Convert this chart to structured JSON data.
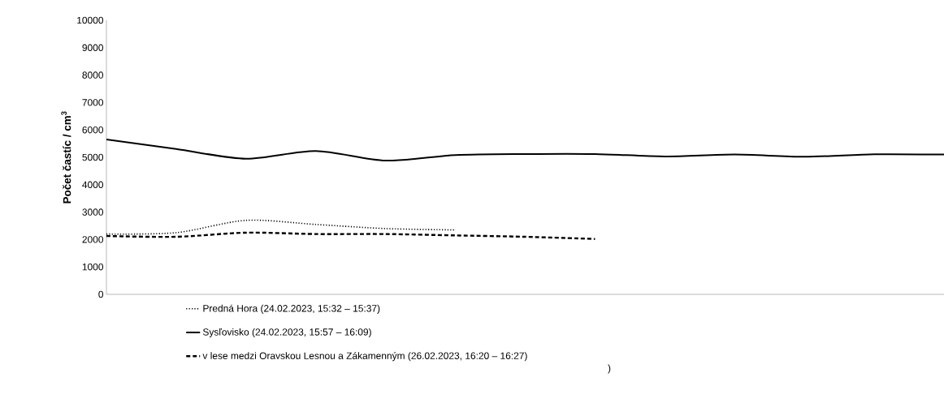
{
  "chart_data": {
    "type": "line",
    "ylabel": "Počet častíc / cm$^{3}$",
    "categories": [
      null,
      null,
      null,
      null,
      null,
      null,
      null,
      null,
      null,
      null,
      null,
      null,
      null
    ],
    "ylim": [
      0,
      10000
    ],
    "yticks": [
      0,
      1000,
      2000,
      3000,
      4000,
      5000,
      6000,
      7000,
      8000,
      9000,
      10000
    ],
    "tick_labels": "y",
    "legend": "bottom",
    "marker": "none",
    "series": [
      {
        "name": "Predná Hora (24.02.2023, 15:32 – 15:37)",
        "color": "#000000",
        "line_style": "dotted",
        "values": [
          2200,
          2250,
          2700,
          2550,
          2400,
          2350,
          null,
          null,
          null,
          null,
          null,
          null,
          null
        ]
      },
      {
        "name": "Sysľovisko (24.02.2023, 15:57 – 16:09)",
        "color": "#000000",
        "line_style": "solid",
        "values": [
          5650,
          5300,
          4950,
          5230,
          4880,
          5080,
          5120,
          5120,
          5030,
          5100,
          5020,
          5110,
          5100
        ]
      },
      {
        "name": "v lese medzi Oravskou Lesnou a Zákamenným (26.02.2023, 16:20 – 16:27)",
        "color": "#000000",
        "line_style": "dashed",
        "values": [
          2130,
          2100,
          2250,
          2200,
          2200,
          2150,
          2100,
          2020,
          null,
          null,
          null,
          null,
          null
        ]
      }
    ],
    "annotations": [
      ")"
    ]
  }
}
